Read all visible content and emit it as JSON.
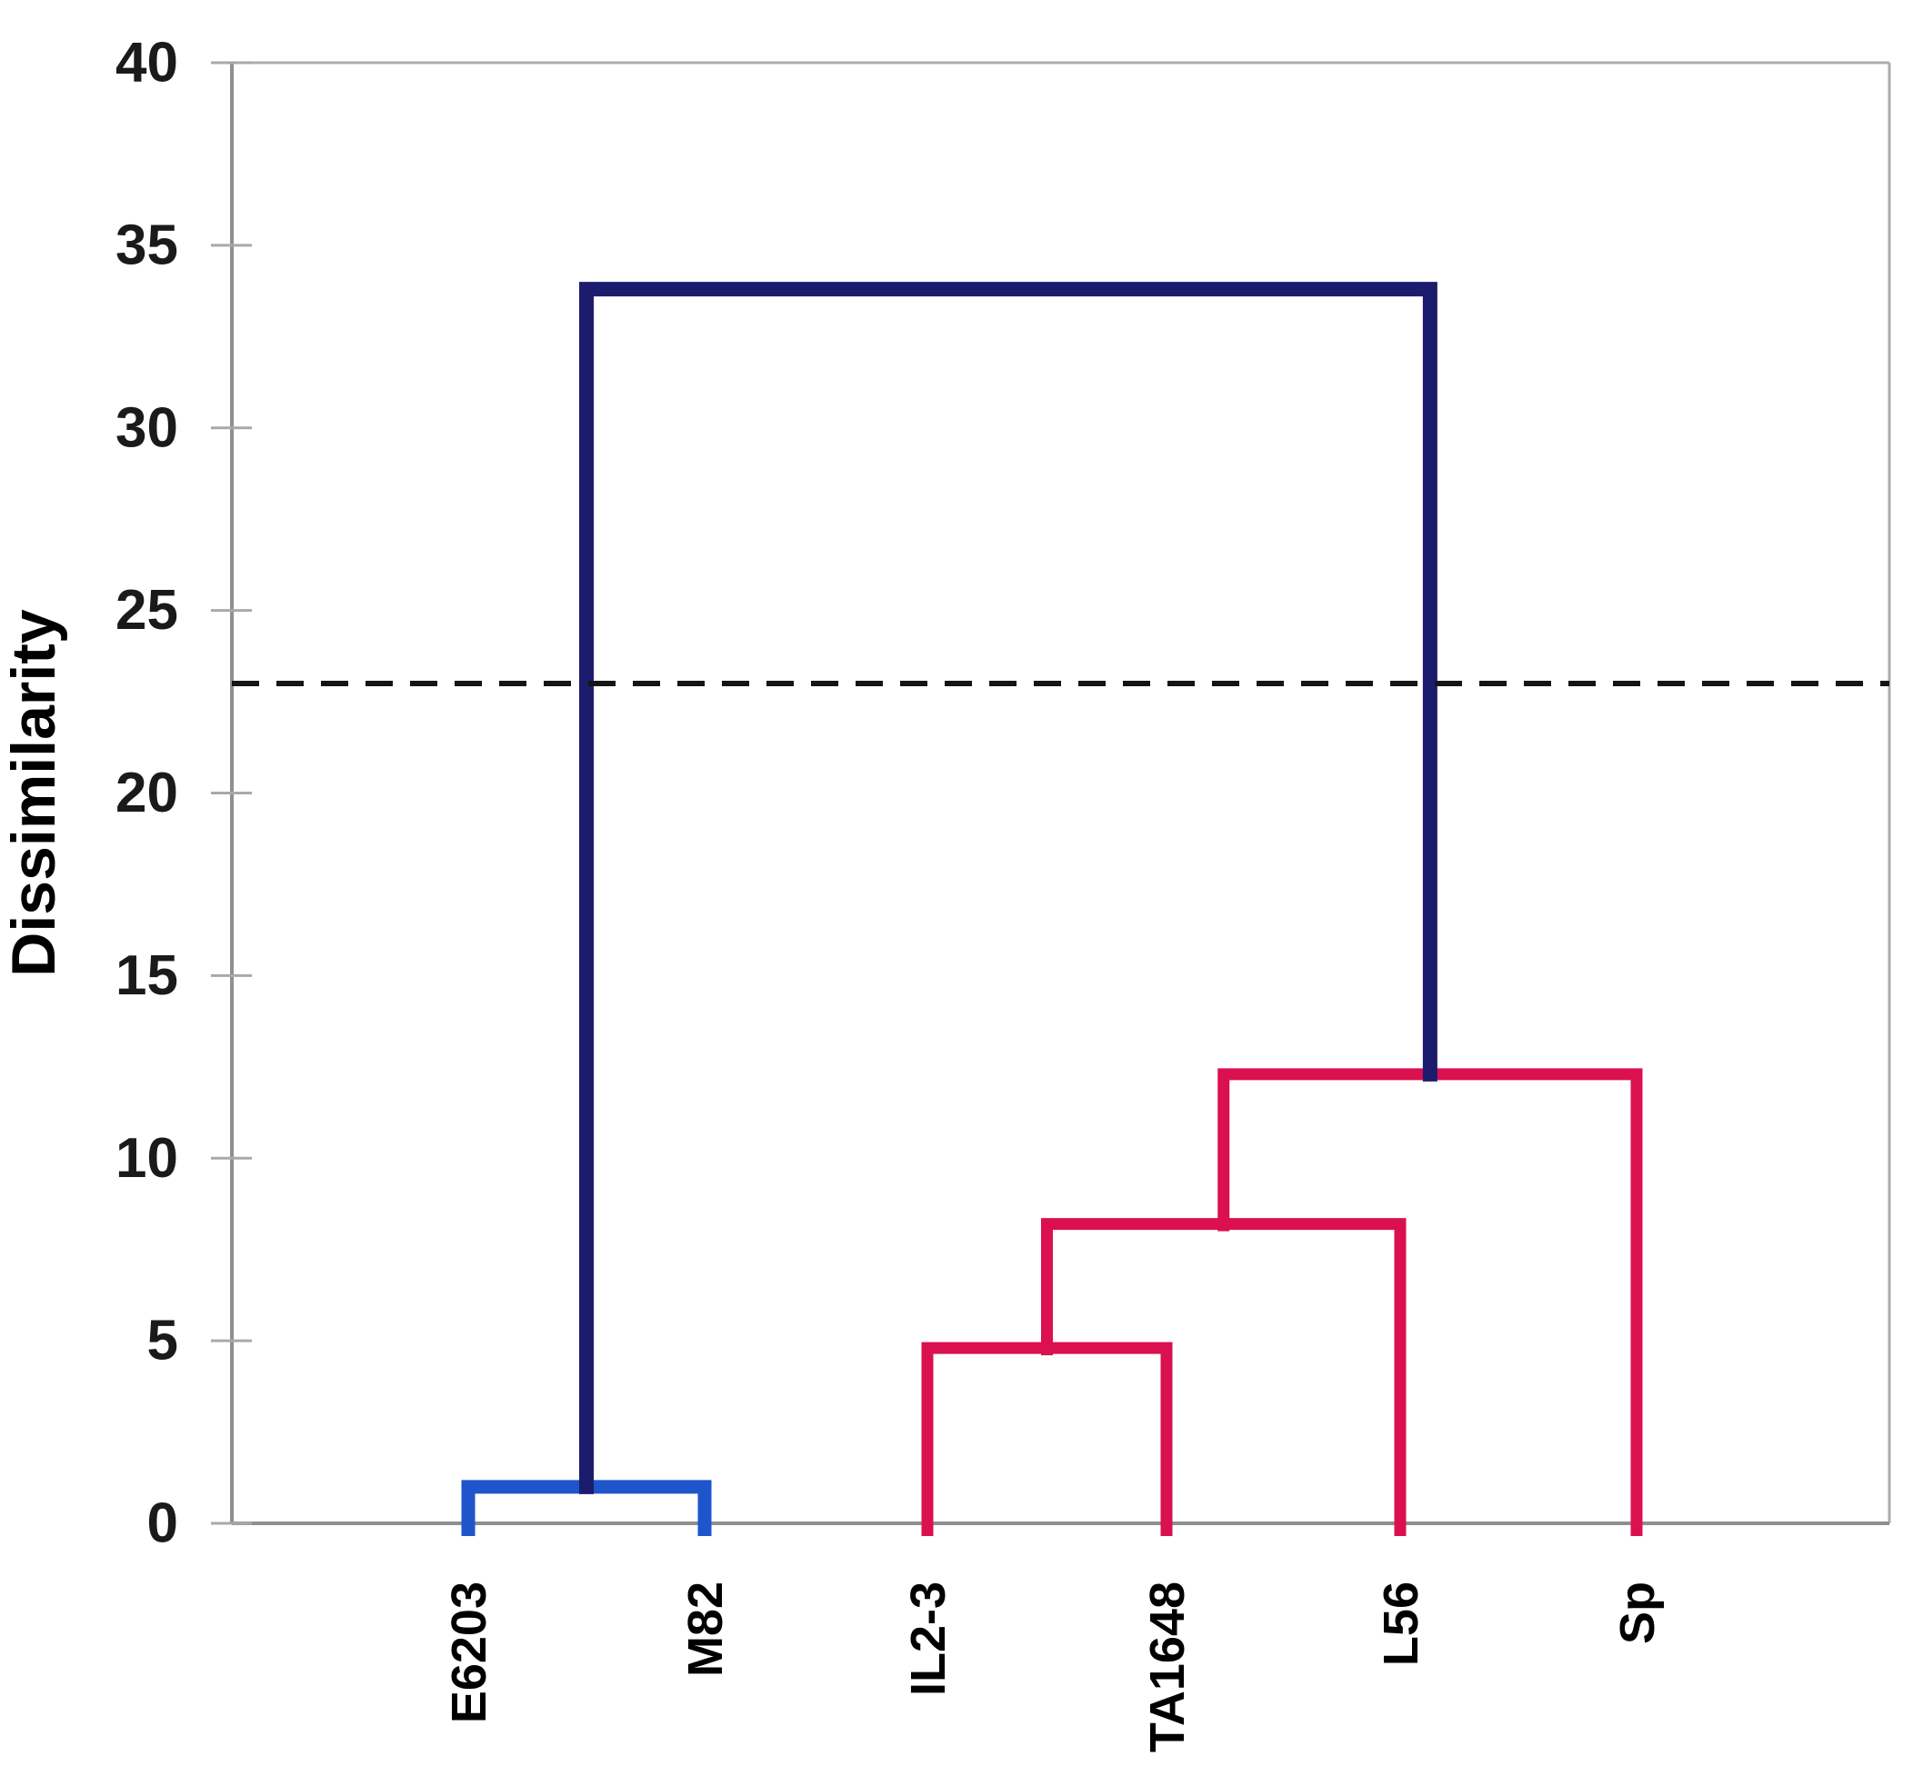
{
  "chart_data": {
    "type": "dendrogram",
    "title": "",
    "ylabel": "Dissimilarity",
    "xlabel": "",
    "ylim": [
      0,
      40
    ],
    "ytick_interval": 5,
    "yticks": [
      40,
      35,
      30,
      25,
      20,
      15,
      10,
      5,
      0
    ],
    "grid": false,
    "legend": null,
    "leaves": [
      "E6203",
      "M82",
      "IL2-3",
      "TA1648",
      "L56",
      "Sp"
    ],
    "clusters": [
      {
        "id": "c1",
        "children": [
          "E6203",
          "M82"
        ],
        "height": 1.0,
        "color": "#1e55cb",
        "label": "blue-pair-E6203-M82"
      },
      {
        "id": "c2",
        "children": [
          "IL2-3",
          "TA1648"
        ],
        "height": 4.8,
        "color": "#da1050",
        "label": "red-pair-IL2-3-TA1648"
      },
      {
        "id": "c3",
        "children": [
          "c2",
          "L56"
        ],
        "height": 8.2,
        "color": "#da1050",
        "label": "red-join-with-L56"
      },
      {
        "id": "c4",
        "children": [
          "c3",
          "Sp"
        ],
        "height": 12.3,
        "color": "#da1050",
        "label": "red-join-with-Sp"
      },
      {
        "id": "c5",
        "children": [
          "c1",
          "c4"
        ],
        "height": 33.8,
        "color": "#1c1c6e",
        "label": "navy-root-join"
      }
    ],
    "threshold_line": {
      "value": 23,
      "style": "dashed",
      "color": "#151515"
    }
  },
  "colors": {
    "blue_cluster": "#1e55cb",
    "red_cluster": "#da1050",
    "navy_root": "#1c1c6e",
    "axis": "#8f8f8f",
    "plot_border": "#adadad",
    "tick_mark": "#a9a9a9",
    "tick_label": "#1a1a1a",
    "threshold": "#151515",
    "background": "#ffffff"
  }
}
